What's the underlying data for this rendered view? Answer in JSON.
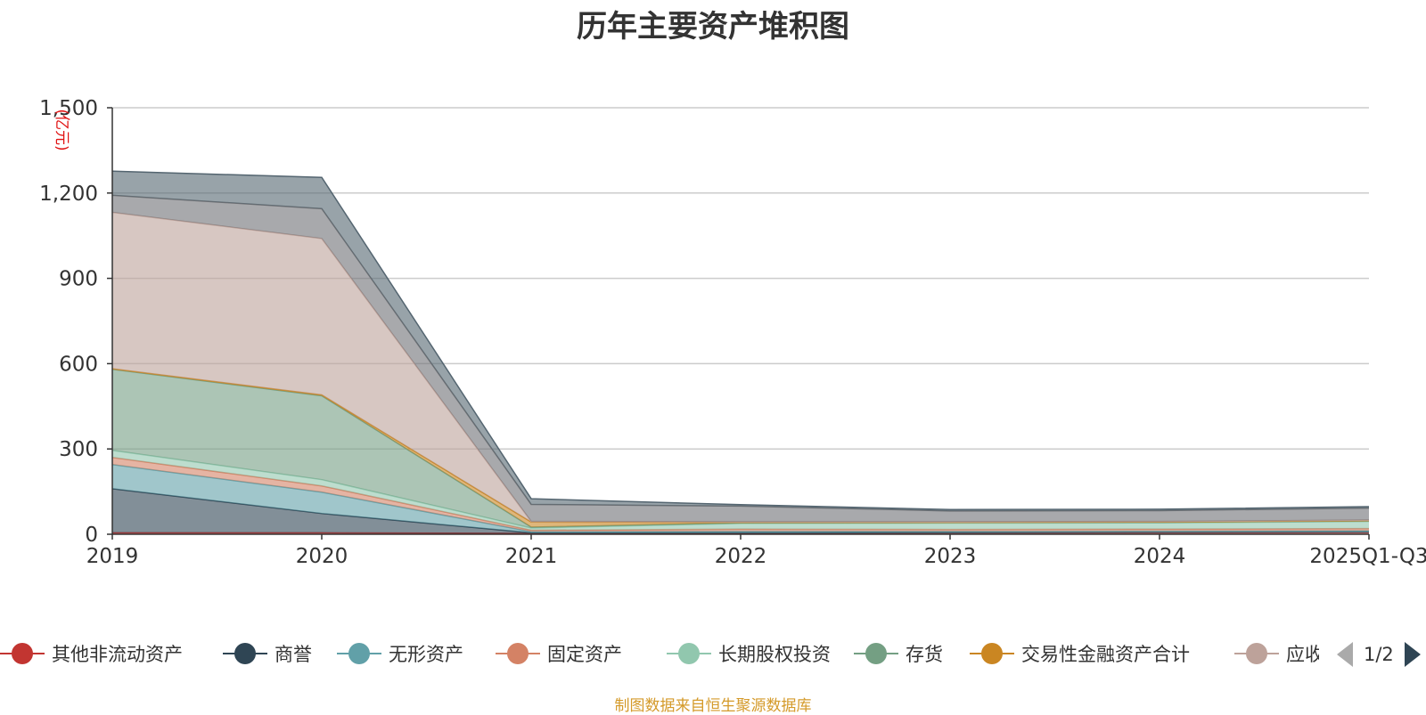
{
  "chart_data": {
    "type": "area",
    "stacked": true,
    "title": "历年主要资产堆积图",
    "unit_label": "(亿元)",
    "categories": [
      "2019",
      "2020",
      "2021",
      "2022",
      "2023",
      "2024",
      "2025Q1-Q3"
    ],
    "ylim": [
      0,
      1500
    ],
    "yticks": [
      "0",
      "300",
      "600",
      "900",
      "1,200",
      "1,500"
    ],
    "ytick_values": [
      0,
      300,
      600,
      900,
      1200,
      1500
    ],
    "grid": true,
    "series": [
      {
        "name": "其他非流动资产",
        "color": "#c23531",
        "values": [
          5,
          5,
          3,
          4,
          5,
          6,
          7
        ]
      },
      {
        "name": "商誉",
        "color": "#2f4554",
        "values": [
          155,
          68,
          2,
          1,
          1,
          1,
          1
        ]
      },
      {
        "name": "无形资产",
        "color": "#61a0a8",
        "values": [
          85,
          75,
          4,
          5,
          4,
          4,
          4
        ]
      },
      {
        "name": "固定资产",
        "color": "#d48265",
        "values": [
          25,
          22,
          5,
          8,
          7,
          7,
          8
        ]
      },
      {
        "name": "长期股权投资",
        "color": "#91c7ae",
        "values": [
          25,
          22,
          8,
          20,
          22,
          22,
          25
        ]
      },
      {
        "name": "存货",
        "color": "#749f83",
        "values": [
          285,
          295,
          3,
          2,
          2,
          2,
          2
        ]
      },
      {
        "name": "交易性金融资产合计",
        "color": "#ca8622",
        "values": [
          2,
          3,
          18,
          2,
          1,
          1,
          1
        ]
      },
      {
        "name": "应收账款",
        "color": "#bda29a",
        "values": [
          550,
          550,
          2,
          2,
          2,
          2,
          2
        ]
      },
      {
        "name": "",
        "color": "#6e7074",
        "values": [
          60,
          105,
          60,
          55,
          38,
          38,
          42
        ]
      },
      {
        "name": "",
        "color": "#546570",
        "values": [
          85,
          110,
          20,
          5,
          5,
          5,
          5
        ]
      }
    ],
    "legend_position": "bottom",
    "legend_visible_count": 8,
    "legend_page": "1/2",
    "source_note": "制图数据来自恒生聚源数据库"
  }
}
